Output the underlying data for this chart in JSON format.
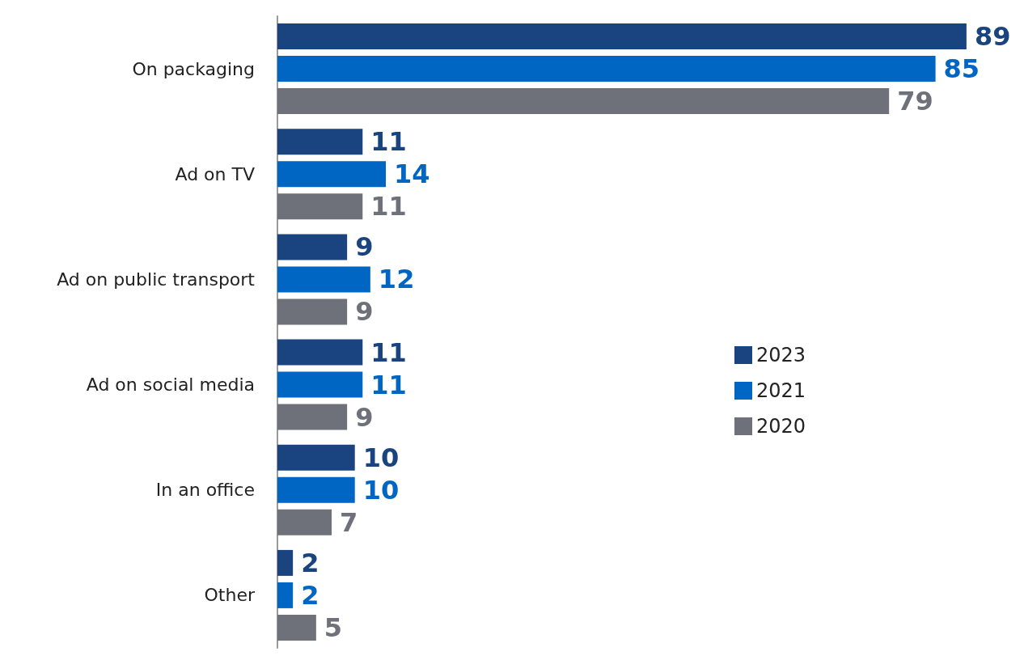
{
  "chart_data": {
    "type": "bar",
    "orientation": "horizontal",
    "categories": [
      "On packaging",
      "Ad on TV",
      "Ad on public transport",
      "Ad on social media",
      "In an office",
      "Other"
    ],
    "series": [
      {
        "name": "2023",
        "color": "#1a4480",
        "values": [
          89,
          11,
          9,
          11,
          10,
          2
        ]
      },
      {
        "name": "2021",
        "color": "#0066c4",
        "values": [
          85,
          14,
          12,
          11,
          10,
          2
        ]
      },
      {
        "name": "2020",
        "color": "#6e717a",
        "values": [
          79,
          11,
          9,
          9,
          7,
          5
        ]
      }
    ],
    "data_labels": true,
    "legend": "right"
  }
}
